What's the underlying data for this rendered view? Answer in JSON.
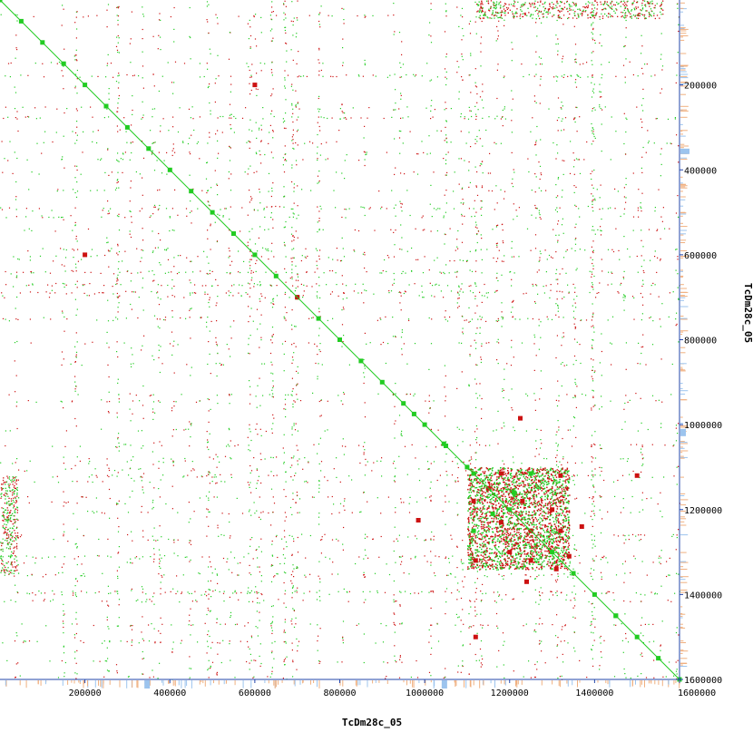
{
  "chart_data": {
    "type": "scatter",
    "title": "",
    "xlabel": "TcDm28c_05",
    "ylabel": "TcDm28c_05",
    "xlim": [
      0,
      1600000
    ],
    "ylim": [
      0,
      1600000
    ],
    "y_inverted": true,
    "x_ticks": [
      200000,
      400000,
      600000,
      800000,
      1000000,
      1200000,
      1400000,
      1600000
    ],
    "y_ticks": [
      200000,
      400000,
      600000,
      800000,
      1000000,
      1200000,
      1400000,
      1600000
    ],
    "x_tick_labels": [
      "200000",
      "400000",
      "600000",
      "800000",
      "1000000",
      "1200000",
      "1400000",
      "1600000"
    ],
    "y_tick_labels": [
      "200000",
      "400000",
      "600000",
      "800000",
      "1000000",
      "1200000",
      "1400000",
      "1600000"
    ],
    "grid": false,
    "legend": "none",
    "colors": {
      "forward_match": "#22cc22",
      "reverse_match": "#cc1111",
      "axis": "#2244aa",
      "density_blue": "#9cc4ee",
      "density_orange": "#f0b080"
    },
    "series": [
      {
        "kind": "forward",
        "points": [
          [
            0,
            0
          ],
          [
            50000,
            50000
          ],
          [
            100000,
            100000
          ],
          [
            150000,
            150000
          ],
          [
            200000,
            200000
          ],
          [
            250000,
            250000
          ],
          [
            300000,
            300000
          ],
          [
            350000,
            350000
          ],
          [
            400000,
            400000
          ],
          [
            450000,
            450000
          ],
          [
            500000,
            500000
          ],
          [
            550000,
            550000
          ],
          [
            600000,
            600000
          ],
          [
            650000,
            650000
          ],
          [
            700000,
            700000
          ],
          [
            750000,
            750000
          ],
          [
            800000,
            800000
          ],
          [
            850000,
            850000
          ],
          [
            900000,
            900000
          ],
          [
            950000,
            950000
          ],
          [
            1000000,
            1000000
          ],
          [
            1050000,
            1050000
          ],
          [
            1100000,
            1100000
          ],
          [
            1150000,
            1150000
          ],
          [
            1200000,
            1200000
          ],
          [
            1250000,
            1250000
          ],
          [
            1300000,
            1300000
          ],
          [
            1350000,
            1350000
          ],
          [
            1400000,
            1400000
          ],
          [
            1450000,
            1450000
          ],
          [
            1500000,
            1500000
          ],
          [
            1550000,
            1550000
          ],
          [
            1600000,
            1600000
          ],
          [
            975000,
            975000
          ],
          [
            1115000,
            1250000
          ],
          [
            1250000,
            1115000
          ],
          [
            1115000,
            1115000
          ],
          [
            1160000,
            1210000
          ],
          [
            1210000,
            1160000
          ],
          [
            1045000,
            1045000
          ],
          [
            1450000,
            1450000
          ]
        ]
      },
      {
        "kind": "reverse",
        "points": [
          [
            1225000,
            985000
          ],
          [
            985000,
            1225000
          ],
          [
            700000,
            700000
          ],
          [
            1115000,
            1180000
          ],
          [
            1180000,
            1115000
          ],
          [
            1150000,
            1150000
          ],
          [
            1250000,
            1250000
          ],
          [
            1300000,
            1200000
          ],
          [
            1200000,
            1300000
          ],
          [
            1120000,
            1320000
          ],
          [
            1320000,
            1120000
          ],
          [
            1250000,
            1320000
          ],
          [
            1320000,
            1250000
          ],
          [
            1180000,
            1230000
          ],
          [
            1230000,
            1180000
          ],
          [
            1370000,
            1240000
          ],
          [
            1240000,
            1370000
          ],
          [
            1340000,
            1310000
          ],
          [
            1310000,
            1340000
          ],
          [
            1500000,
            1120000
          ],
          [
            1120000,
            1500000
          ],
          [
            200000,
            600000
          ],
          [
            600000,
            200000
          ]
        ]
      }
    ]
  }
}
